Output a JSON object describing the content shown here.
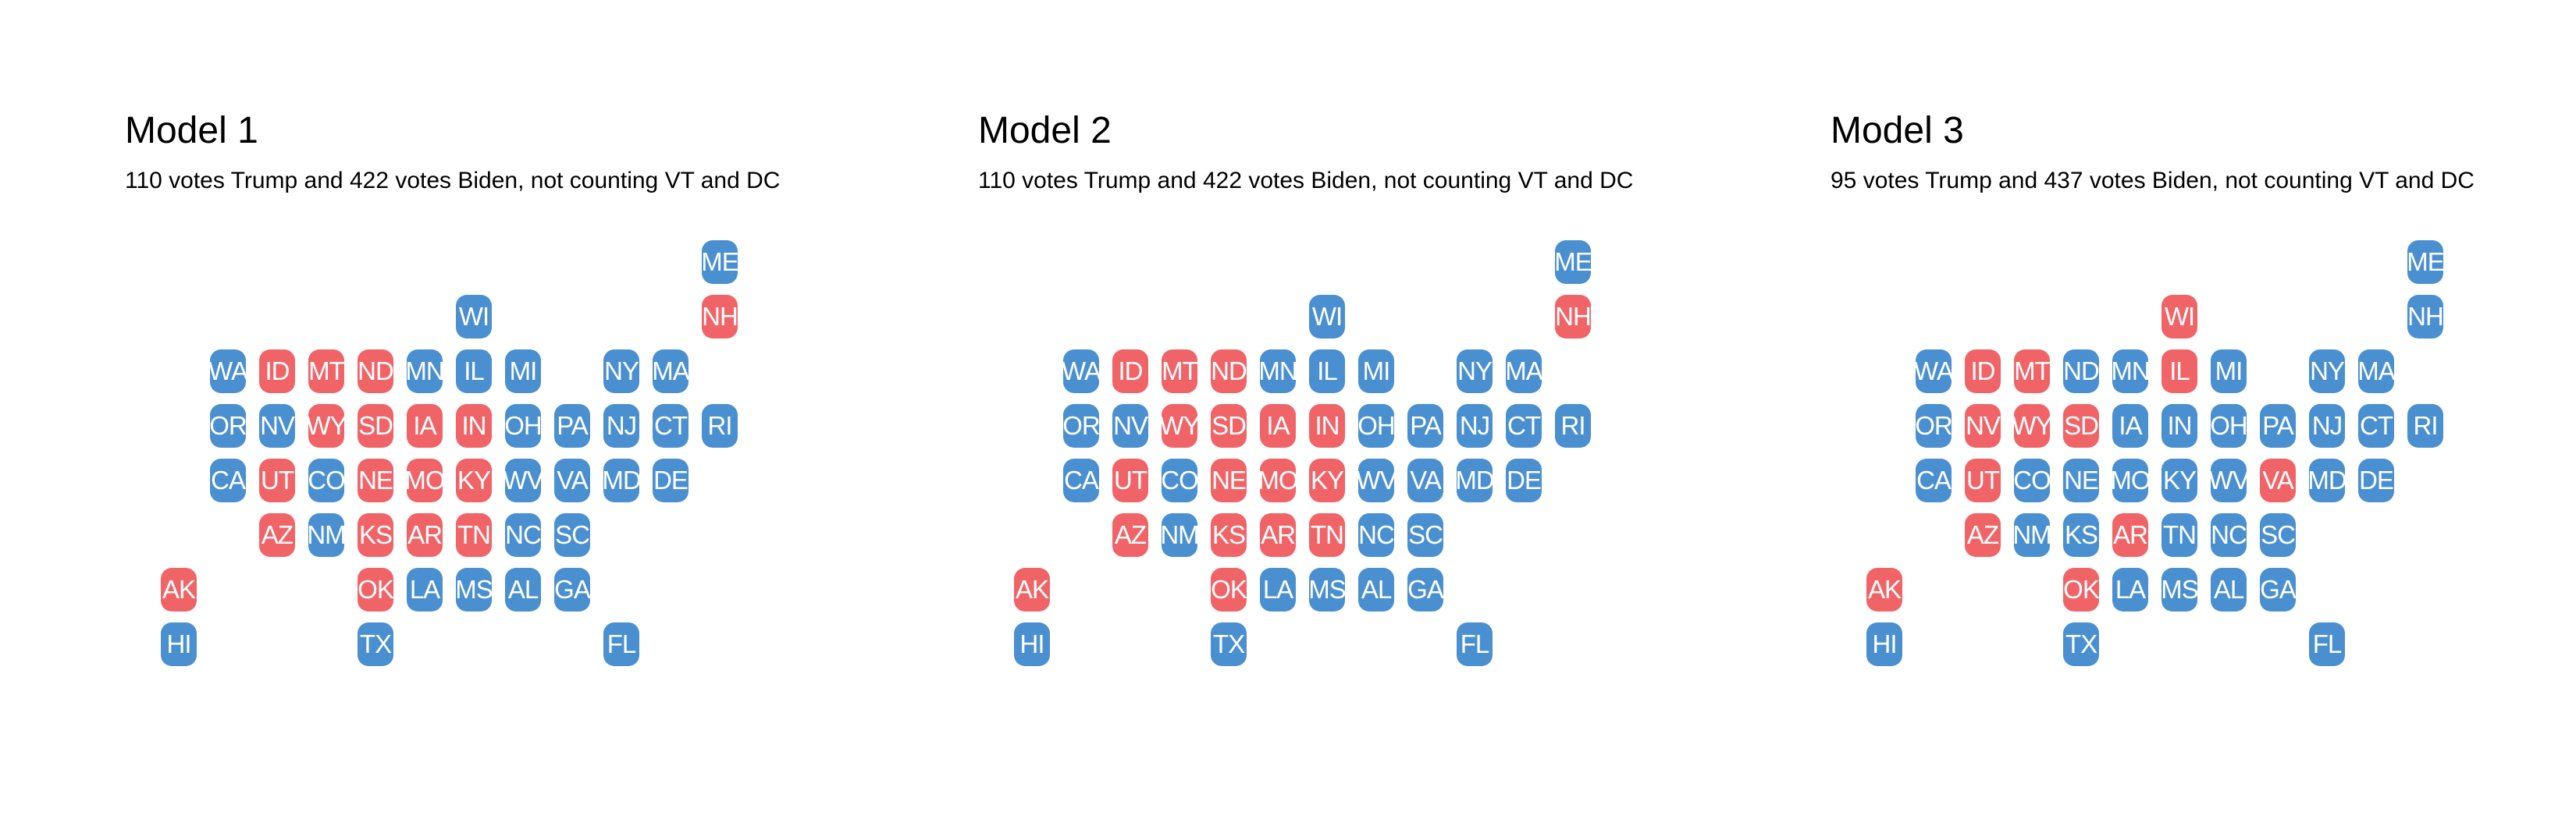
{
  "colors": {
    "biden": "#4a90d0",
    "trump": "#f06468",
    "text": "#000000",
    "background": "#ffffff"
  },
  "panels": [
    {
      "title": "Model 1",
      "subtitle": "110 votes Trump and 422 votes Biden, not counting VT and DC",
      "states": [
        {
          "code": "ME",
          "winner": "biden"
        },
        {
          "code": "WI",
          "winner": "biden"
        },
        {
          "code": "NH",
          "winner": "trump"
        },
        {
          "code": "WA",
          "winner": "biden"
        },
        {
          "code": "ID",
          "winner": "trump"
        },
        {
          "code": "MT",
          "winner": "trump"
        },
        {
          "code": "ND",
          "winner": "trump"
        },
        {
          "code": "MN",
          "winner": "biden"
        },
        {
          "code": "IL",
          "winner": "biden"
        },
        {
          "code": "MI",
          "winner": "biden"
        },
        {
          "code": "NY",
          "winner": "biden"
        },
        {
          "code": "MA",
          "winner": "biden"
        },
        {
          "code": "OR",
          "winner": "biden"
        },
        {
          "code": "NV",
          "winner": "biden"
        },
        {
          "code": "WY",
          "winner": "trump"
        },
        {
          "code": "SD",
          "winner": "trump"
        },
        {
          "code": "IA",
          "winner": "trump"
        },
        {
          "code": "IN",
          "winner": "trump"
        },
        {
          "code": "OH",
          "winner": "biden"
        },
        {
          "code": "PA",
          "winner": "biden"
        },
        {
          "code": "NJ",
          "winner": "biden"
        },
        {
          "code": "CT",
          "winner": "biden"
        },
        {
          "code": "RI",
          "winner": "biden"
        },
        {
          "code": "CA",
          "winner": "biden"
        },
        {
          "code": "UT",
          "winner": "trump"
        },
        {
          "code": "CO",
          "winner": "biden"
        },
        {
          "code": "NE",
          "winner": "trump"
        },
        {
          "code": "MO",
          "winner": "trump"
        },
        {
          "code": "KY",
          "winner": "trump"
        },
        {
          "code": "WV",
          "winner": "biden"
        },
        {
          "code": "VA",
          "winner": "biden"
        },
        {
          "code": "MD",
          "winner": "biden"
        },
        {
          "code": "DE",
          "winner": "biden"
        },
        {
          "code": "AZ",
          "winner": "trump"
        },
        {
          "code": "NM",
          "winner": "biden"
        },
        {
          "code": "KS",
          "winner": "trump"
        },
        {
          "code": "AR",
          "winner": "trump"
        },
        {
          "code": "TN",
          "winner": "trump"
        },
        {
          "code": "NC",
          "winner": "biden"
        },
        {
          "code": "SC",
          "winner": "biden"
        },
        {
          "code": "AK",
          "winner": "trump"
        },
        {
          "code": "OK",
          "winner": "trump"
        },
        {
          "code": "LA",
          "winner": "biden"
        },
        {
          "code": "MS",
          "winner": "biden"
        },
        {
          "code": "AL",
          "winner": "biden"
        },
        {
          "code": "GA",
          "winner": "biden"
        },
        {
          "code": "HI",
          "winner": "biden"
        },
        {
          "code": "TX",
          "winner": "biden"
        },
        {
          "code": "FL",
          "winner": "biden"
        }
      ]
    },
    {
      "title": "Model 2",
      "subtitle": "110 votes Trump and 422 votes Biden, not counting VT and DC",
      "states": [
        {
          "code": "ME",
          "winner": "biden"
        },
        {
          "code": "WI",
          "winner": "biden"
        },
        {
          "code": "NH",
          "winner": "trump"
        },
        {
          "code": "WA",
          "winner": "biden"
        },
        {
          "code": "ID",
          "winner": "trump"
        },
        {
          "code": "MT",
          "winner": "trump"
        },
        {
          "code": "ND",
          "winner": "trump"
        },
        {
          "code": "MN",
          "winner": "biden"
        },
        {
          "code": "IL",
          "winner": "biden"
        },
        {
          "code": "MI",
          "winner": "biden"
        },
        {
          "code": "NY",
          "winner": "biden"
        },
        {
          "code": "MA",
          "winner": "biden"
        },
        {
          "code": "OR",
          "winner": "biden"
        },
        {
          "code": "NV",
          "winner": "biden"
        },
        {
          "code": "WY",
          "winner": "trump"
        },
        {
          "code": "SD",
          "winner": "trump"
        },
        {
          "code": "IA",
          "winner": "trump"
        },
        {
          "code": "IN",
          "winner": "trump"
        },
        {
          "code": "OH",
          "winner": "biden"
        },
        {
          "code": "PA",
          "winner": "biden"
        },
        {
          "code": "NJ",
          "winner": "biden"
        },
        {
          "code": "CT",
          "winner": "biden"
        },
        {
          "code": "RI",
          "winner": "biden"
        },
        {
          "code": "CA",
          "winner": "biden"
        },
        {
          "code": "UT",
          "winner": "trump"
        },
        {
          "code": "CO",
          "winner": "biden"
        },
        {
          "code": "NE",
          "winner": "trump"
        },
        {
          "code": "MO",
          "winner": "trump"
        },
        {
          "code": "KY",
          "winner": "trump"
        },
        {
          "code": "WV",
          "winner": "biden"
        },
        {
          "code": "VA",
          "winner": "biden"
        },
        {
          "code": "MD",
          "winner": "biden"
        },
        {
          "code": "DE",
          "winner": "biden"
        },
        {
          "code": "AZ",
          "winner": "trump"
        },
        {
          "code": "NM",
          "winner": "biden"
        },
        {
          "code": "KS",
          "winner": "trump"
        },
        {
          "code": "AR",
          "winner": "trump"
        },
        {
          "code": "TN",
          "winner": "trump"
        },
        {
          "code": "NC",
          "winner": "biden"
        },
        {
          "code": "SC",
          "winner": "biden"
        },
        {
          "code": "AK",
          "winner": "trump"
        },
        {
          "code": "OK",
          "winner": "trump"
        },
        {
          "code": "LA",
          "winner": "biden"
        },
        {
          "code": "MS",
          "winner": "biden"
        },
        {
          "code": "AL",
          "winner": "biden"
        },
        {
          "code": "GA",
          "winner": "biden"
        },
        {
          "code": "HI",
          "winner": "biden"
        },
        {
          "code": "TX",
          "winner": "biden"
        },
        {
          "code": "FL",
          "winner": "biden"
        }
      ]
    },
    {
      "title": "Model 3",
      "subtitle": "95 votes Trump and 437 votes Biden, not counting VT and DC",
      "states": [
        {
          "code": "ME",
          "winner": "biden"
        },
        {
          "code": "WI",
          "winner": "trump"
        },
        {
          "code": "NH",
          "winner": "biden"
        },
        {
          "code": "WA",
          "winner": "biden"
        },
        {
          "code": "ID",
          "winner": "trump"
        },
        {
          "code": "MT",
          "winner": "trump"
        },
        {
          "code": "ND",
          "winner": "biden"
        },
        {
          "code": "MN",
          "winner": "biden"
        },
        {
          "code": "IL",
          "winner": "trump"
        },
        {
          "code": "MI",
          "winner": "biden"
        },
        {
          "code": "NY",
          "winner": "biden"
        },
        {
          "code": "MA",
          "winner": "biden"
        },
        {
          "code": "OR",
          "winner": "biden"
        },
        {
          "code": "NV",
          "winner": "trump"
        },
        {
          "code": "WY",
          "winner": "trump"
        },
        {
          "code": "SD",
          "winner": "trump"
        },
        {
          "code": "IA",
          "winner": "biden"
        },
        {
          "code": "IN",
          "winner": "biden"
        },
        {
          "code": "OH",
          "winner": "biden"
        },
        {
          "code": "PA",
          "winner": "biden"
        },
        {
          "code": "NJ",
          "winner": "biden"
        },
        {
          "code": "CT",
          "winner": "biden"
        },
        {
          "code": "RI",
          "winner": "biden"
        },
        {
          "code": "CA",
          "winner": "biden"
        },
        {
          "code": "UT",
          "winner": "trump"
        },
        {
          "code": "CO",
          "winner": "biden"
        },
        {
          "code": "NE",
          "winner": "biden"
        },
        {
          "code": "MO",
          "winner": "biden"
        },
        {
          "code": "KY",
          "winner": "biden"
        },
        {
          "code": "WV",
          "winner": "biden"
        },
        {
          "code": "VA",
          "winner": "trump"
        },
        {
          "code": "MD",
          "winner": "biden"
        },
        {
          "code": "DE",
          "winner": "biden"
        },
        {
          "code": "AZ",
          "winner": "trump"
        },
        {
          "code": "NM",
          "winner": "biden"
        },
        {
          "code": "KS",
          "winner": "biden"
        },
        {
          "code": "AR",
          "winner": "trump"
        },
        {
          "code": "TN",
          "winner": "biden"
        },
        {
          "code": "NC",
          "winner": "biden"
        },
        {
          "code": "SC",
          "winner": "biden"
        },
        {
          "code": "AK",
          "winner": "trump"
        },
        {
          "code": "OK",
          "winner": "trump"
        },
        {
          "code": "LA",
          "winner": "biden"
        },
        {
          "code": "MS",
          "winner": "biden"
        },
        {
          "code": "AL",
          "winner": "biden"
        },
        {
          "code": "GA",
          "winner": "biden"
        },
        {
          "code": "HI",
          "winner": "biden"
        },
        {
          "code": "TX",
          "winner": "biden"
        },
        {
          "code": "FL",
          "winner": "biden"
        }
      ]
    }
  ]
}
